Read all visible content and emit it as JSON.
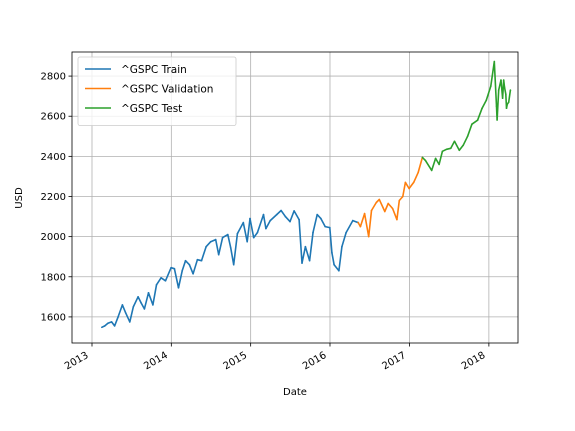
{
  "chart_data": {
    "type": "line",
    "xlabel": "Date",
    "ylabel": "USD",
    "x_scale": "date",
    "xlim": [
      "2012-10-01",
      "2018-05-15"
    ],
    "ylim": [
      1470,
      2920
    ],
    "x_ticks": [
      {
        "date": "2013-01-01",
        "label": "2013"
      },
      {
        "date": "2014-01-01",
        "label": "2014"
      },
      {
        "date": "2015-01-01",
        "label": "2015"
      },
      {
        "date": "2016-01-01",
        "label": "2016"
      },
      {
        "date": "2017-01-01",
        "label": "2017"
      },
      {
        "date": "2018-01-01",
        "label": "2018"
      }
    ],
    "y_ticks": [
      1600,
      1800,
      2000,
      2200,
      2400,
      2600,
      2800
    ],
    "grid": true,
    "legend_position": "top-left",
    "series": [
      {
        "name": "^GSPC Train",
        "color": "#1f77b4",
        "points": [
          [
            "2013-02-15",
            1548
          ],
          [
            "2013-03-01",
            1555
          ],
          [
            "2013-03-15",
            1568
          ],
          [
            "2013-04-01",
            1575
          ],
          [
            "2013-04-15",
            1555
          ],
          [
            "2013-05-01",
            1600
          ],
          [
            "2013-05-21",
            1660
          ],
          [
            "2013-06-05",
            1620
          ],
          [
            "2013-06-24",
            1575
          ],
          [
            "2013-07-10",
            1650
          ],
          [
            "2013-08-01",
            1700
          ],
          [
            "2013-08-15",
            1670
          ],
          [
            "2013-08-30",
            1640
          ],
          [
            "2013-09-18",
            1720
          ],
          [
            "2013-10-08",
            1660
          ],
          [
            "2013-10-25",
            1760
          ],
          [
            "2013-11-15",
            1795
          ],
          [
            "2013-12-05",
            1780
          ],
          [
            "2013-12-31",
            1845
          ],
          [
            "2014-01-15",
            1840
          ],
          [
            "2014-02-03",
            1745
          ],
          [
            "2014-02-20",
            1830
          ],
          [
            "2014-03-07",
            1880
          ],
          [
            "2014-03-25",
            1860
          ],
          [
            "2014-04-11",
            1815
          ],
          [
            "2014-05-01",
            1885
          ],
          [
            "2014-05-20",
            1880
          ],
          [
            "2014-06-10",
            1950
          ],
          [
            "2014-07-01",
            1975
          ],
          [
            "2014-07-24",
            1985
          ],
          [
            "2014-08-07",
            1910
          ],
          [
            "2014-08-25",
            1995
          ],
          [
            "2014-09-18",
            2010
          ],
          [
            "2014-10-01",
            1945
          ],
          [
            "2014-10-15",
            1860
          ],
          [
            "2014-11-01",
            2015
          ],
          [
            "2014-11-28",
            2070
          ],
          [
            "2014-12-16",
            1975
          ],
          [
            "2014-12-29",
            2090
          ],
          [
            "2015-01-15",
            1995
          ],
          [
            "2015-02-01",
            2020
          ],
          [
            "2015-03-01",
            2110
          ],
          [
            "2015-03-12",
            2040
          ],
          [
            "2015-04-01",
            2080
          ],
          [
            "2015-05-01",
            2110
          ],
          [
            "2015-05-21",
            2130
          ],
          [
            "2015-06-10",
            2100
          ],
          [
            "2015-07-01",
            2075
          ],
          [
            "2015-07-20",
            2128
          ],
          [
            "2015-08-12",
            2085
          ],
          [
            "2015-08-25",
            1868
          ],
          [
            "2015-09-10",
            1950
          ],
          [
            "2015-09-29",
            1880
          ],
          [
            "2015-10-15",
            2020
          ],
          [
            "2015-11-03",
            2110
          ],
          [
            "2015-11-20",
            2090
          ],
          [
            "2015-12-10",
            2050
          ],
          [
            "2015-12-31",
            2045
          ],
          [
            "2016-01-10",
            1920
          ],
          [
            "2016-01-20",
            1860
          ],
          [
            "2016-02-11",
            1830
          ],
          [
            "2016-02-25",
            1950
          ],
          [
            "2016-03-15",
            2020
          ],
          [
            "2016-04-15",
            2080
          ],
          [
            "2016-05-10",
            2070
          ]
        ]
      },
      {
        "name": "^GSPC Validation",
        "color": "#ff7f0e",
        "points": [
          [
            "2016-05-10",
            2070
          ],
          [
            "2016-05-20",
            2050
          ],
          [
            "2016-06-08",
            2115
          ],
          [
            "2016-06-27",
            2000
          ],
          [
            "2016-07-10",
            2130
          ],
          [
            "2016-08-01",
            2170
          ],
          [
            "2016-08-15",
            2185
          ],
          [
            "2016-09-09",
            2125
          ],
          [
            "2016-09-25",
            2165
          ],
          [
            "2016-10-15",
            2140
          ],
          [
            "2016-11-04",
            2085
          ],
          [
            "2016-11-15",
            2180
          ],
          [
            "2016-12-01",
            2200
          ],
          [
            "2016-12-13",
            2270
          ],
          [
            "2016-12-30",
            2240
          ],
          [
            "2017-01-20",
            2270
          ],
          [
            "2017-02-10",
            2320
          ],
          [
            "2017-03-01",
            2395
          ]
        ]
      },
      {
        "name": "^GSPC Test",
        "color": "#2ca02c",
        "points": [
          [
            "2017-03-01",
            2395
          ],
          [
            "2017-03-15",
            2380
          ],
          [
            "2017-04-13",
            2330
          ],
          [
            "2017-05-01",
            2390
          ],
          [
            "2017-05-17",
            2360
          ],
          [
            "2017-06-01",
            2425
          ],
          [
            "2017-06-20",
            2435
          ],
          [
            "2017-07-10",
            2440
          ],
          [
            "2017-07-27",
            2475
          ],
          [
            "2017-08-18",
            2430
          ],
          [
            "2017-09-05",
            2455
          ],
          [
            "2017-09-25",
            2500
          ],
          [
            "2017-10-15",
            2560
          ],
          [
            "2017-11-10",
            2580
          ],
          [
            "2017-12-01",
            2640
          ],
          [
            "2017-12-20",
            2680
          ],
          [
            "2018-01-10",
            2750
          ],
          [
            "2018-01-26",
            2872
          ],
          [
            "2018-02-05",
            2650
          ],
          [
            "2018-02-08",
            2581
          ],
          [
            "2018-02-15",
            2730
          ],
          [
            "2018-02-26",
            2780
          ],
          [
            "2018-03-05",
            2690
          ],
          [
            "2018-03-10",
            2780
          ],
          [
            "2018-03-14",
            2745
          ],
          [
            "2018-03-20",
            2710
          ],
          [
            "2018-03-23",
            2640
          ],
          [
            "2018-03-27",
            2660
          ],
          [
            "2018-04-02",
            2670
          ],
          [
            "2018-04-10",
            2730
          ]
        ]
      }
    ]
  }
}
